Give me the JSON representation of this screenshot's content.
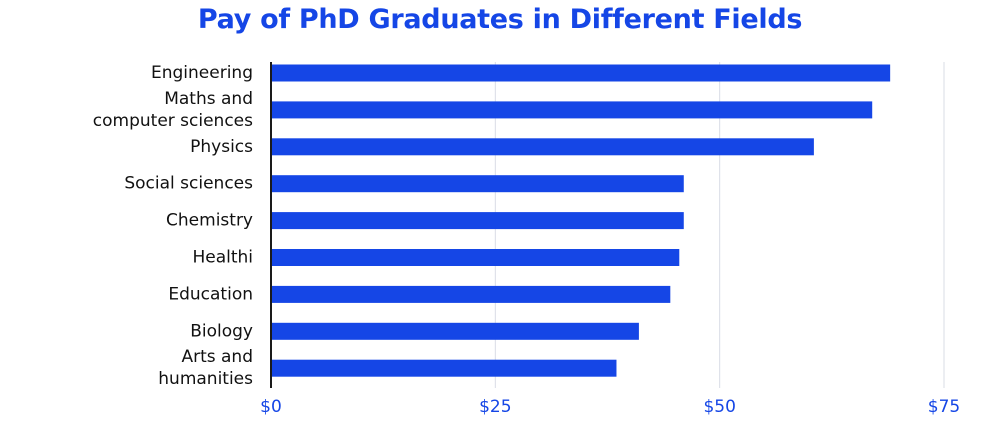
{
  "colors": {
    "bar": "#1546e6",
    "title": "#1546e6",
    "tick_label": "#1546e6",
    "grid": "#d9dce6",
    "axis": "#1a1a1a",
    "category_label": "#111111"
  },
  "chart_data": {
    "type": "bar",
    "orientation": "horizontal",
    "title": "Pay of PhD Graduates in Different Fields",
    "xlabel": "",
    "ylabel": "",
    "categories": [
      [
        "Engineering"
      ],
      [
        "Maths and",
        "computer sciences"
      ],
      [
        "Physics"
      ],
      [
        "Social sciences"
      ],
      [
        "Chemistry"
      ],
      [
        "Healthi"
      ],
      [
        "Education"
      ],
      [
        "Biology"
      ],
      [
        "Arts and",
        "humanities"
      ]
    ],
    "values": [
      69,
      67,
      60.5,
      46,
      46,
      45.5,
      44.5,
      41,
      38.5
    ],
    "xlim": [
      0,
      75
    ],
    "ticks": [
      0,
      25,
      50,
      75
    ],
    "tick_labels": [
      "$0",
      "$25",
      "$50",
      "$75"
    ],
    "grid": "vertical"
  }
}
